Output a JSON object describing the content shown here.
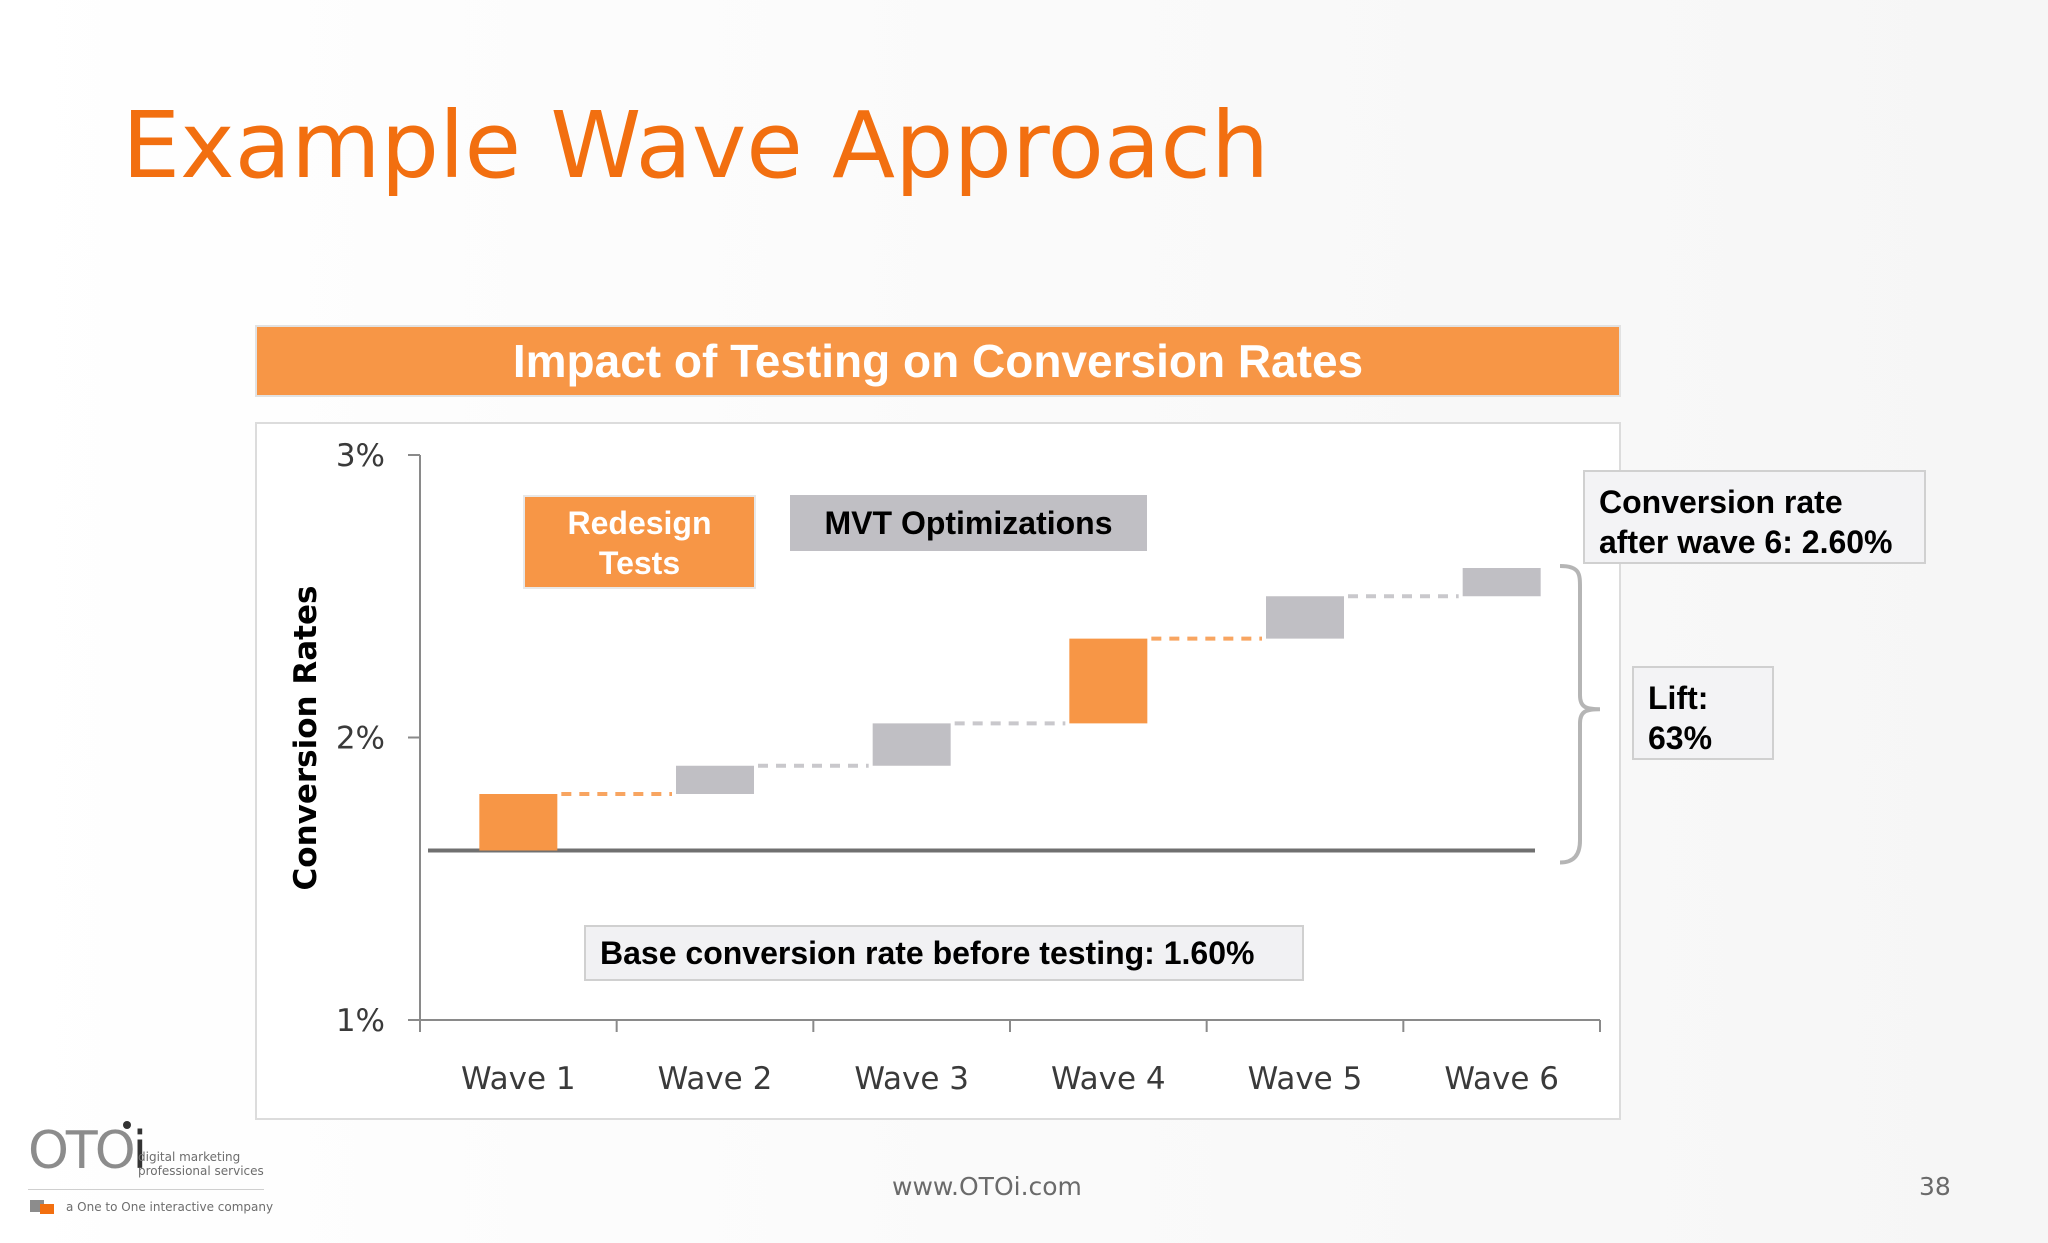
{
  "slide": {
    "title": "Example Wave Approach",
    "footer_url": "www.OTOi.com",
    "page_number": "38"
  },
  "logo": {
    "wordmark_o1": "OTO",
    "wordmark_i": "i",
    "tagline": "digital marketing\nprofessional services",
    "company_line": "a One to One interactive company"
  },
  "annotations": {
    "legend_redesign": "Redesign\nTests",
    "legend_mvt": "MVT Optimizations",
    "base_note": "Base conversion rate before testing: 1.60%",
    "final_note": "Conversion rate\nafter wave 6: 2.60%",
    "lift_note": "Lift:\n63%"
  },
  "chart_data": {
    "type": "bar",
    "subtype": "waterfall",
    "title": "Impact of Testing on Conversion Rates",
    "ylabel": "Conversion Rates",
    "xlabel": "",
    "categories": [
      "Wave 1",
      "Wave 2",
      "Wave 3",
      "Wave 4",
      "Wave 5",
      "Wave 6"
    ],
    "ylim": [
      1,
      3
    ],
    "yticks": [
      1,
      2,
      3
    ],
    "ytick_labels": [
      "1%",
      "2%",
      "3%"
    ],
    "baseline": 1.6,
    "final_value": 2.6,
    "lift_percent": 63,
    "series": [
      {
        "name": "Redesign Tests",
        "color": "#f79646",
        "values": [
          0.2,
          0,
          0,
          0.3,
          0,
          0
        ]
      },
      {
        "name": "MVT Optimizations",
        "color": "#c0bfc4",
        "values": [
          0,
          0.1,
          0.15,
          0,
          0.15,
          0.1
        ]
      }
    ],
    "steps": [
      {
        "category": "Wave 1",
        "start": 1.6,
        "end": 1.8,
        "kind": "Redesign Tests"
      },
      {
        "category": "Wave 2",
        "start": 1.8,
        "end": 1.9,
        "kind": "MVT Optimizations"
      },
      {
        "category": "Wave 3",
        "start": 1.9,
        "end": 2.05,
        "kind": "MVT Optimizations"
      },
      {
        "category": "Wave 4",
        "start": 2.05,
        "end": 2.35,
        "kind": "Redesign Tests"
      },
      {
        "category": "Wave 5",
        "start": 2.35,
        "end": 2.5,
        "kind": "MVT Optimizations"
      },
      {
        "category": "Wave 6",
        "start": 2.5,
        "end": 2.6,
        "kind": "MVT Optimizations"
      }
    ],
    "grid": false,
    "legend": "top-left"
  }
}
